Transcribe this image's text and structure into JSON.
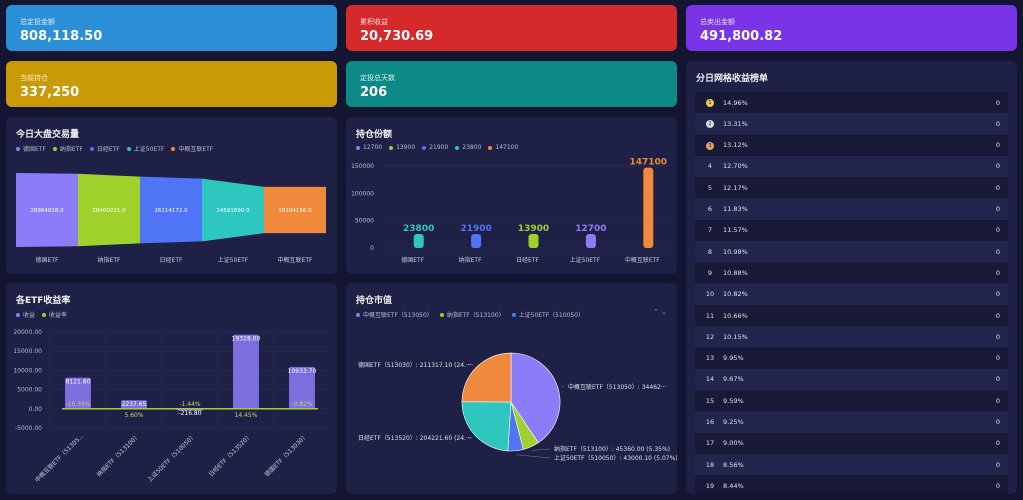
{
  "stats": [
    {
      "label": "总定投金额",
      "value": "808,118.50",
      "color": "#2a8fd6"
    },
    {
      "label": "累积收益",
      "value": "20,730.69",
      "color": "#d6292b"
    },
    {
      "label": "总卖出金额",
      "value": "491,800.82",
      "color": "#7a34e8"
    },
    {
      "label": "当前持仓",
      "value": "337,250",
      "color": "#c99a05"
    },
    {
      "label": "定投总天数",
      "value": "206",
      "color": "#0d8a87"
    }
  ],
  "volume": {
    "title": "今日大盘交易量",
    "legend": [
      {
        "name": "德国ETF",
        "color": "#8d7cf8"
      },
      {
        "name": "纳指ETF",
        "color": "#9fd12c"
      },
      {
        "name": "日经ETF",
        "color": "#4f74f5"
      },
      {
        "name": "上证50ETF",
        "color": "#2ec7c0"
      },
      {
        "name": "中概互联ETF",
        "color": "#ef8a3c"
      }
    ],
    "chart_data": {
      "type": "bar",
      "categories": [
        "德国ETF",
        "纳指ETF",
        "日经ETF",
        "上证50ETF",
        "中概互联ETF"
      ],
      "values": [
        28964828.0,
        28400221.0,
        26114172.0,
        24591690.0,
        18104156.0
      ],
      "labels": [
        "28964828.0",
        "28400221.0",
        "26114172.0",
        "24591690.0",
        "18104156.0"
      ]
    }
  },
  "holdings": {
    "title": "持仓份额",
    "legend": [
      {
        "name": "12700",
        "color": "#8d7cf8"
      },
      {
        "name": "13900",
        "color": "#9fd12c"
      },
      {
        "name": "21900",
        "color": "#4f74f5"
      },
      {
        "name": "23800",
        "color": "#2ec7c0"
      },
      {
        "name": "147100",
        "color": "#ef8a3c"
      }
    ],
    "chart_data": {
      "type": "bar",
      "categories": [
        "德国ETF",
        "纳指ETF",
        "日经ETF",
        "上证50ETF",
        "中概互联ETF"
      ],
      "values": [
        23800,
        21900,
        13900,
        12700,
        147100
      ],
      "labels": [
        "23800",
        "21900",
        "13900",
        "12700",
        "147100"
      ],
      "colors": [
        "#2ec7c0",
        "#4f74f5",
        "#9fd12c",
        "#8d7cf8",
        "#ef8a3c"
      ],
      "yticks": [
        "150000",
        "100000",
        "50000",
        "0"
      ],
      "ylim": [
        0,
        150000
      ]
    }
  },
  "returns": {
    "title": "各ETF收益率",
    "legend": [
      {
        "name": "收益",
        "color": "#8d7cf8"
      },
      {
        "name": "收益率",
        "color": "#9fd12c"
      }
    ],
    "chart_data": {
      "type": "bar",
      "categories": [
        "中概互联ETF（51305...",
        "纳指ETF（513100）",
        "上证50ETF（510050）",
        "日经ETF（513520）",
        "德国ETF（513030）"
      ],
      "series": [
        {
          "name": "收益",
          "values": [
            8121.8,
            2237.65,
            -216.8,
            19328.0,
            10933.7
          ],
          "labels": [
            "8121.80",
            "2237.65",
            "-216.80",
            "19328.00",
            "10933.70"
          ]
        },
        {
          "name": "收益率",
          "values": [
            -10.39,
            5.6,
            -1.44,
            14.45,
            -0.82
          ],
          "labels": [
            "-10.39%",
            "5.60%",
            "-1.44%",
            "14.45%",
            "-0.82%"
          ]
        }
      ],
      "yticks": [
        "20000.00",
        "15000.00",
        "10000.00",
        "5000.00",
        "0.00",
        "-5000.00"
      ],
      "ylim": [
        -5000,
        20000
      ]
    }
  },
  "market": {
    "title": "持仓市值",
    "legend": [
      {
        "name": "中概互联ETF（513050）",
        "color": "#8d7cf8"
      },
      {
        "name": "纳指ETF（513100）",
        "color": "#9fd12c"
      },
      {
        "name": "上证50ETF（510050）",
        "color": "#4f74f5"
      }
    ],
    "pager": "⌃ ⌄",
    "chart_data": {
      "type": "pie",
      "slices": [
        {
          "name": "中概互联ETF（513050）",
          "value": 344620,
          "color": "#8d7cf8",
          "label": "中概互联ETF（513050）: 34462···"
        },
        {
          "name": "纳指ETF（513100）",
          "value": 45360.0,
          "color": "#9fd12c",
          "label": "纳指ETF（513100）: 45360.00 (5.35%)"
        },
        {
          "name": "上证50ETF（510050）",
          "value": 43000.1,
          "color": "#4f74f5",
          "label": "上证50ETF（510050）: 43000.10 (5.07%)"
        },
        {
          "name": "日经ETF（513520）",
          "value": 204221.6,
          "color": "#2ec7c0",
          "label": "日经ETF（513520）: 204221.60 (24.···"
        },
        {
          "name": "德国ETF（513030）",
          "value": 211317.1,
          "color": "#ef8a3c",
          "label": "德国ETF（513030）: 211317.10 (24.···"
        }
      ]
    }
  },
  "ranking": {
    "title": "分日网格收益榜单",
    "rows": [
      {
        "rank": "1",
        "pct": "14.96%",
        "count": "0",
        "medal": "#f2c94c"
      },
      {
        "rank": "2",
        "pct": "13.31%",
        "count": "0",
        "medal": "#d9dce6"
      },
      {
        "rank": "3",
        "pct": "13.12%",
        "count": "0",
        "medal": "#e0a070"
      },
      {
        "rank": "4",
        "pct": "12.70%",
        "count": "0"
      },
      {
        "rank": "5",
        "pct": "12.17%",
        "count": "0"
      },
      {
        "rank": "6",
        "pct": "11.83%",
        "count": "0"
      },
      {
        "rank": "7",
        "pct": "11.57%",
        "count": "0"
      },
      {
        "rank": "8",
        "pct": "10.98%",
        "count": "0"
      },
      {
        "rank": "9",
        "pct": "10.88%",
        "count": "0"
      },
      {
        "rank": "10",
        "pct": "10.82%",
        "count": "0"
      },
      {
        "rank": "11",
        "pct": "10.66%",
        "count": "0"
      },
      {
        "rank": "12",
        "pct": "10.15%",
        "count": "0"
      },
      {
        "rank": "13",
        "pct": "9.95%",
        "count": "0"
      },
      {
        "rank": "14",
        "pct": "9.67%",
        "count": "0"
      },
      {
        "rank": "15",
        "pct": "9.59%",
        "count": "0"
      },
      {
        "rank": "16",
        "pct": "9.25%",
        "count": "0"
      },
      {
        "rank": "17",
        "pct": "9.00%",
        "count": "0"
      },
      {
        "rank": "18",
        "pct": "8.56%",
        "count": "0"
      },
      {
        "rank": "19",
        "pct": "8.44%",
        "count": "0"
      }
    ]
  }
}
